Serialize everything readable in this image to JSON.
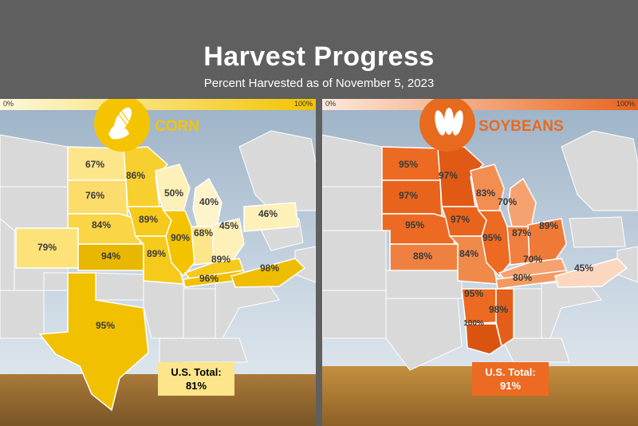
{
  "header": {
    "title": "Harvest Progress",
    "subtitle": "Percent Harvested as of November 5, 2023"
  },
  "scale": {
    "min_label": "0%",
    "max_label": "100%"
  },
  "colors": {
    "corn_scale": [
      "#fdf8dc",
      "#f3c300"
    ],
    "soy_scale": [
      "#fde9dc",
      "#e8631c"
    ],
    "corn_badge": "#f5c400",
    "soy_badge": "#e86a1f",
    "non_reporting_state": "#d9d9d9",
    "background": "#5f5f5f"
  },
  "corn": {
    "crop_label": "CORN",
    "icon": "corn-icon",
    "total_label": "U.S. Total:",
    "total_value": "81%",
    "states": {
      "ND": "67%",
      "MN": "86%",
      "SD": "76%",
      "WI": "50%",
      "MI": "40%",
      "NE": "84%",
      "IA": "89%",
      "IL": "90%",
      "IN": "68%",
      "OH": "45%",
      "PA": "46%",
      "CO": "79%",
      "KS": "94%",
      "MO": "89%",
      "KY": "89%",
      "TN": "96%",
      "NC": "98%",
      "TX": "95%"
    }
  },
  "soybeans": {
    "crop_label": "SOYBEANS",
    "icon": "soybean-icon",
    "total_label": "U.S. Total:",
    "total_value": "91%",
    "states": {
      "ND": "95%",
      "MN": "97%",
      "SD": "97%",
      "WI": "83%",
      "MI": "70%",
      "NE": "95%",
      "IA": "97%",
      "IL": "95%",
      "IN": "87%",
      "OH": "89%",
      "KS": "88%",
      "MO": "84%",
      "KY": "70%",
      "TN": "80%",
      "NC": "45%",
      "AR": "95%",
      "MS": "98%",
      "LA": "100%"
    }
  }
}
